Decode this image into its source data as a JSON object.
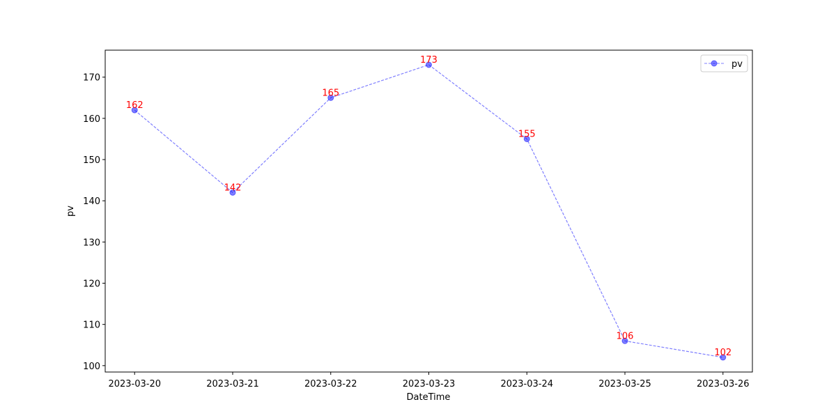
{
  "chart_data": {
    "type": "line",
    "categories": [
      "2023-03-20",
      "2023-03-21",
      "2023-03-22",
      "2023-03-23",
      "2023-03-24",
      "2023-03-25",
      "2023-03-26"
    ],
    "series": [
      {
        "name": "pv",
        "color": "#0000ff",
        "values": [
          162,
          142,
          165,
          173,
          155,
          106,
          102
        ]
      }
    ],
    "xlabel": "DateTime",
    "ylabel": "pv",
    "ylim": [
      98.45,
      176.55
    ],
    "yticks": [
      100,
      110,
      120,
      130,
      140,
      150,
      160,
      170
    ],
    "legend": "upper right",
    "label_color": "#ff0000"
  }
}
